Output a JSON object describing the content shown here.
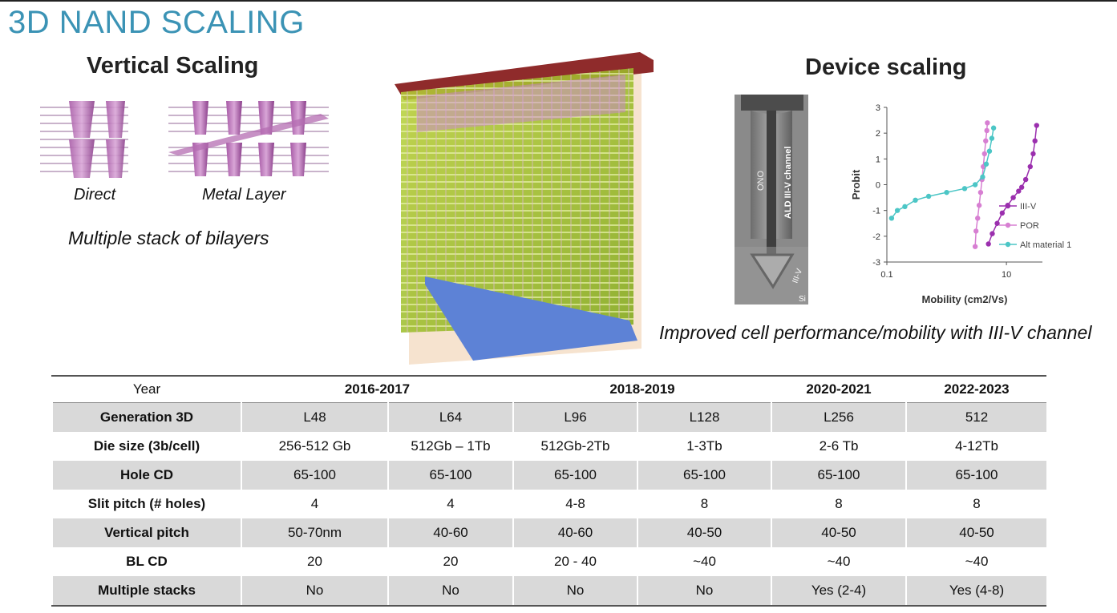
{
  "title": "3D NAND SCALING",
  "vertical": {
    "heading": "Vertical Scaling",
    "direct_label": "Direct",
    "metal_label": "Metal Layer",
    "caption": "Multiple stack of bilayers"
  },
  "device": {
    "heading": "Device scaling",
    "tem_labels": {
      "ono": "ONO",
      "ald": "ALD III-V channel",
      "iiiv": "III-V",
      "si": "Si"
    },
    "caption": "Improved cell performance/mobility with III-V channel"
  },
  "chart_data": {
    "type": "scatter",
    "xlabel": "Mobility (cm2/Vs)",
    "ylabel": "Probit",
    "xscale": "log",
    "xlim": [
      0.1,
      40
    ],
    "ylim": [
      -3,
      3
    ],
    "xticks": [
      "0.1",
      "10"
    ],
    "yticks": [
      "3",
      "2",
      "1",
      "0",
      "-1",
      "-2",
      "-3"
    ],
    "legend_position": "right",
    "series": [
      {
        "name": "III-V",
        "color": "#9b2fae",
        "x": [
          5,
          5.8,
          7,
          8.5,
          10.5,
          13,
          16,
          18,
          21,
          25,
          28,
          30,
          32
        ],
        "y": [
          -2.3,
          -1.9,
          -1.5,
          -1.1,
          -0.8,
          -0.5,
          -0.25,
          -0.1,
          0.2,
          0.7,
          1.2,
          1.7,
          2.3
        ]
      },
      {
        "name": "POR",
        "color": "#d77fd2",
        "x": [
          3.0,
          3.1,
          3.3,
          3.5,
          3.7,
          3.9,
          4.1,
          4.3,
          4.5,
          4.7,
          4.8
        ],
        "y": [
          -2.4,
          -1.8,
          -1.3,
          -0.8,
          -0.3,
          0.2,
          0.7,
          1.2,
          1.7,
          2.1,
          2.4
        ]
      },
      {
        "name": "Alt material 1",
        "color": "#4cc6c6",
        "x": [
          0.12,
          0.15,
          0.2,
          0.3,
          0.5,
          1.0,
          2.0,
          3.0,
          4.0,
          4.6,
          5.2,
          5.7,
          6.1
        ],
        "y": [
          -1.3,
          -1.0,
          -0.85,
          -0.6,
          -0.45,
          -0.3,
          -0.15,
          0.0,
          0.3,
          0.8,
          1.3,
          1.8,
          2.2
        ]
      }
    ]
  },
  "table": {
    "year_label": "Year",
    "years": [
      "2016-2017",
      "2018-2019",
      "2020-2021",
      "2022-2023"
    ],
    "rows": [
      {
        "label": "Generation 3D",
        "cells": [
          "L48",
          "L64",
          "L96",
          "L128",
          "L256",
          "512"
        ]
      },
      {
        "label": "Die size (3b/cell)",
        "cells": [
          "256-512 Gb",
          "512Gb – 1Tb",
          "512Gb-2Tb",
          "1-3Tb",
          "2-6 Tb",
          "4-12Tb"
        ]
      },
      {
        "label": "Hole CD",
        "cells": [
          "65-100",
          "65-100",
          "65-100",
          "65-100",
          "65-100",
          "65-100"
        ]
      },
      {
        "label": "Slit pitch (# holes)",
        "cells": [
          "4",
          "4",
          "4-8",
          "8",
          "8",
          "8"
        ]
      },
      {
        "label": "Vertical pitch",
        "cells": [
          "50-70nm",
          "40-60",
          "40-60",
          "40-50",
          "40-50",
          "40-50"
        ]
      },
      {
        "label": "BL CD",
        "cells": [
          "20",
          "20",
          "20 - 40",
          "~40",
          "~40",
          "~40"
        ]
      },
      {
        "label": "Multiple stacks",
        "cells": [
          "No",
          "No",
          "No",
          "No",
          "Yes (2-4)",
          "Yes (4-8)"
        ]
      }
    ]
  }
}
